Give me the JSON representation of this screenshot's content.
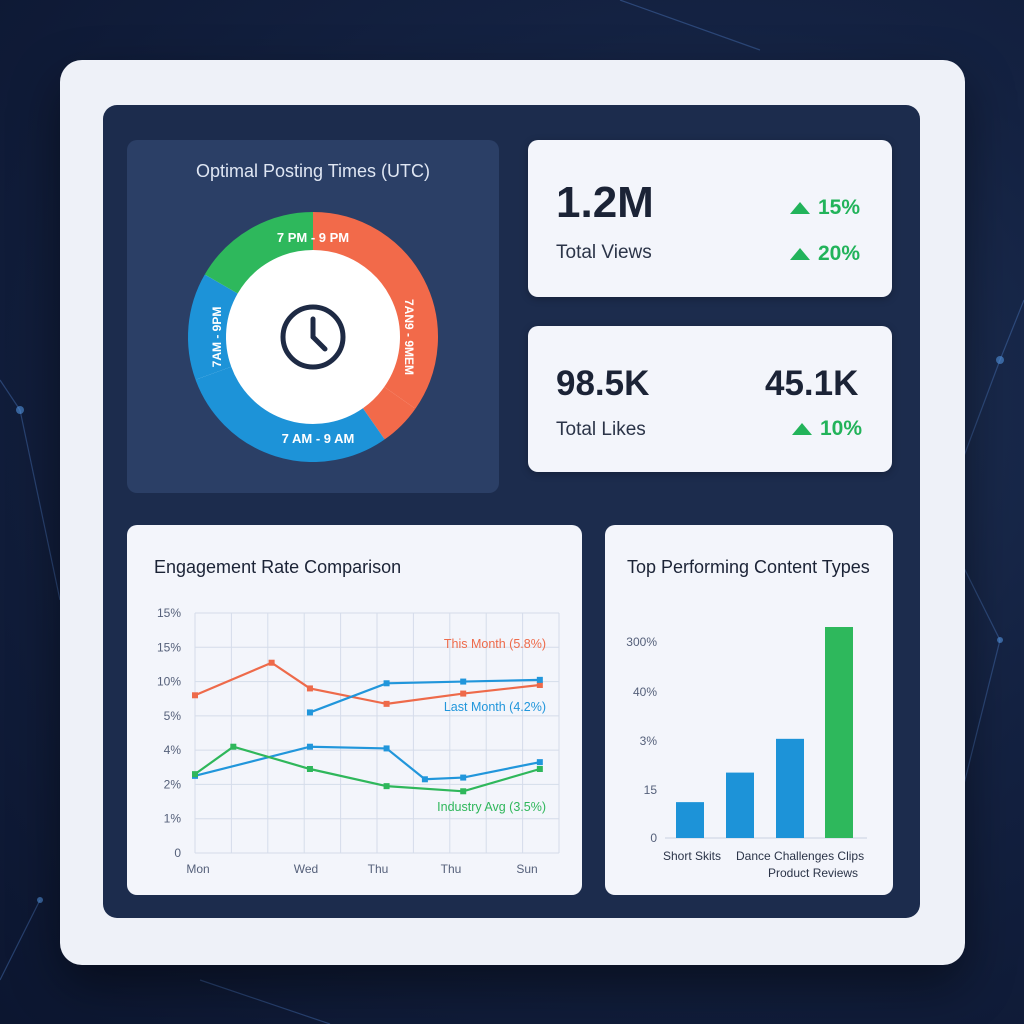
{
  "posting_times": {
    "title": "Optimal Posting Times (UTC)",
    "segments": [
      {
        "label": "7 PM - 9 PM",
        "color": "#f26a4a",
        "start": 0,
        "end": 125
      },
      {
        "label": "7AM - 9PM",
        "color": "#f26a4a",
        "start": 125,
        "end": 145
      },
      {
        "label": "7 AM - 9 AM",
        "color": "#1d93d8",
        "start": 145,
        "end": 250
      },
      {
        "label": "7AM - 9PM",
        "color": "#1d93d8",
        "start": 250,
        "end": 300
      },
      {
        "label": "",
        "color": "#2eb85c",
        "start": 300,
        "end": 360
      }
    ],
    "ring_labels": {
      "top": "7 PM - 9 PM",
      "right": "7AN9 - 9MEM",
      "bottom": "7 AM - 9 AM",
      "left": "7AM - 9PM"
    },
    "center_icon": "clock-icon"
  },
  "views_card": {
    "value": "1.2M",
    "label": "Total Views",
    "change1": "15%",
    "change2": "20%",
    "icon": "arrow-up-icon"
  },
  "likes_card": {
    "value": "98.5K",
    "value2": "45.1K",
    "label": "Total Likes",
    "change": "10%",
    "icon": "arrow-up-icon"
  },
  "engagement": {
    "title": "Engagement Rate Comparison",
    "chart_data": {
      "type": "line",
      "y_ticks": [
        "15%",
        "15%",
        "10%",
        "5%",
        "4%",
        "2%",
        "1%",
        "0"
      ],
      "x_ticks": [
        "Mon",
        "Wed",
        "Thu",
        "Thu",
        "Sun"
      ],
      "grid": true,
      "series": [
        {
          "name": "This Month (5.8%)",
          "color": "#ee6a4a",
          "points": [
            [
              0,
              4.6
            ],
            [
              2,
              5.55
            ],
            [
              3,
              4.8
            ],
            [
              5,
              4.35
            ],
            [
              7,
              4.65
            ],
            [
              9,
              4.9
            ]
          ]
        },
        {
          "name": "Last Month (4.2%)",
          "color": "#2196db",
          "points": [
            [
              3,
              4.1
            ],
            [
              5,
              4.95
            ],
            [
              7,
              5.0
            ],
            [
              9,
              5.05
            ]
          ]
        },
        {
          "name": "",
          "color": "#2196db",
          "points": [
            [
              0,
              2.25
            ],
            [
              3,
              3.1
            ],
            [
              5,
              3.05
            ],
            [
              6,
              2.15
            ],
            [
              7,
              2.2
            ],
            [
              9,
              2.65
            ]
          ]
        },
        {
          "name": "Industry Avg (3.5%)",
          "color": "#2fb75b",
          "points": [
            [
              0,
              2.3
            ],
            [
              1,
              3.1
            ],
            [
              3,
              2.45
            ],
            [
              5,
              1.95
            ],
            [
              7,
              1.8
            ],
            [
              9,
              2.45
            ]
          ]
        }
      ]
    }
  },
  "content_types": {
    "title": "Top Performing Content Types",
    "chart_data": {
      "type": "bar",
      "y_ticks": [
        "300%",
        "40%",
        "3%",
        "15",
        "0"
      ],
      "categories": [
        "Short Skits",
        "Dance Challenges",
        "Clips",
        "Product Reviews"
      ],
      "x_labels_line1": "Short Skits",
      "x_labels_line1b": "Dance Challenges Clips",
      "x_labels_line2": "Product Reviews",
      "values": [
        0.17,
        0.31,
        0.47,
        1.0
      ],
      "colors": [
        "#1d93d8",
        "#1d93d8",
        "#1d93d8",
        "#2eb85c"
      ]
    }
  }
}
